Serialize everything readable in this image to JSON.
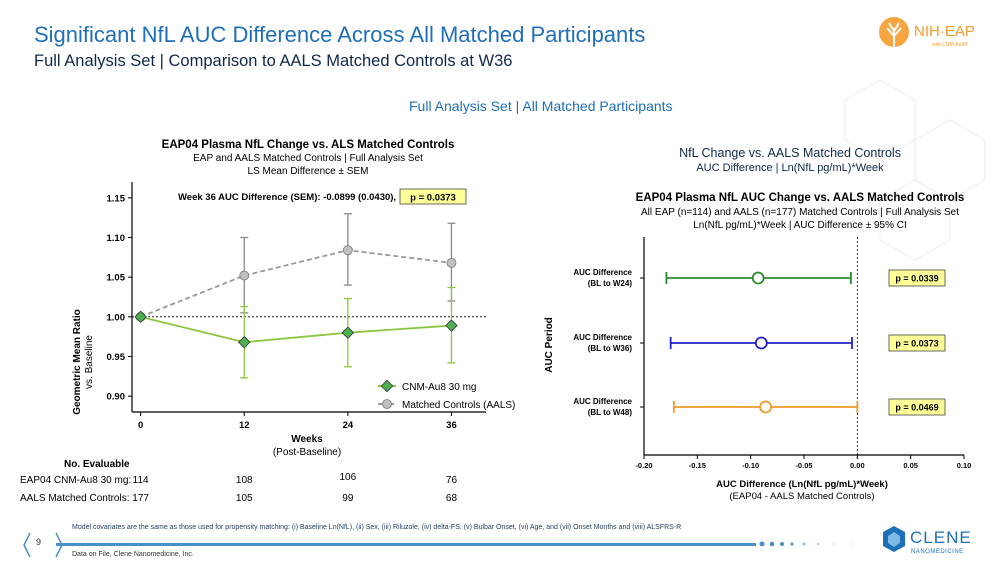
{
  "header": {
    "title": "Significant NfL AUC Difference Across All Matched Participants",
    "subtitle": "Full Analysis Set | Comparison to AALS Matched Controls at W36",
    "section_label": "Full Analysis Set | All Matched Participants"
  },
  "logos": {
    "nih_text": "NIH·EAP",
    "nih_sub": "with CNM-Au8®",
    "clene_text": "CLENE",
    "clene_sub": "NANOMEDICINE"
  },
  "colors": {
    "title_blue": "#1f6fb8",
    "green": "#8cc63f",
    "grey": "#9a9a9a",
    "pval_bg": "#ffff99",
    "forest_green": "#2e8b2e",
    "forest_blue": "#2222cc",
    "forest_orange": "#f39a2c"
  },
  "chart_data": [
    {
      "type": "line",
      "title": "EAP04 Plasma NfL Change vs. ALS Matched Controls",
      "subtitle1": "EAP and AALS Matched Controls | Full Analysis Set",
      "subtitle2": "LS Mean Difference ± SEM",
      "annotation": "Week 36 AUC Difference (SEM):  -0.0899 (0.0430),",
      "pvalue": "p = 0.0373",
      "xlabel": "Weeks",
      "xlabel2": "(Post-Baseline)",
      "ylabel": "Geometric Mean Ratio",
      "ylabel2": "vs. Baseline",
      "x": [
        0,
        12,
        24,
        36
      ],
      "xlim": [
        -1,
        40
      ],
      "ylim": [
        0.88,
        1.17
      ],
      "yticks": [
        "0.90",
        "0.95",
        "1.00",
        "1.05",
        "1.10",
        "1.15"
      ],
      "xticks": [
        "0",
        "12",
        "24",
        "36"
      ],
      "reference_line": 1.0,
      "series": [
        {
          "name": "CNM-Au8 30 mg",
          "values": [
            1.0,
            0.968,
            0.98,
            0.989
          ],
          "err_low": [
            1.0,
            0.923,
            0.937,
            0.942
          ],
          "err_high": [
            1.0,
            1.013,
            1.023,
            1.037
          ]
        },
        {
          "name": "Matched Controls (AALS)",
          "values": [
            1.0,
            1.052,
            1.084,
            1.068
          ],
          "err_low": [
            1.0,
            1.005,
            1.04,
            1.02
          ],
          "err_high": [
            1.0,
            1.1,
            1.13,
            1.118
          ]
        }
      ],
      "evaluable": {
        "header": "No. Evaluable",
        "rows": [
          {
            "label": "EAP04 CNM-Au8 30 mg:",
            "values": [
              "114",
              "108",
              "106",
              "76"
            ]
          },
          {
            "label": "AALS Matched Controls:",
            "values": [
              "177",
              "105",
              "99",
              "68"
            ]
          }
        ]
      }
    },
    {
      "type": "forest",
      "heading1": "NfL Change vs. AALS Matched Controls",
      "heading2": "AUC Difference | Ln(NfL pg/mL)*Week",
      "title": "EAP04 Plasma NfL AUC Change vs. AALS Matched Controls",
      "subtitle1": "All EAP (n=114) and AALS (n=177) Matched Controls | Full Analysis Set",
      "subtitle2": "Ln(NfL pg/mL)*Week | AUC Difference ± 95% CI",
      "ylabel": "AUC Period",
      "xlabel": "AUC Difference (Ln(NfL pg/mL)*Week)",
      "xlabel2": "(EAP04 - AALS Matched Controls)",
      "xlim": [
        -0.2,
        0.1
      ],
      "xticks": [
        "-0.20",
        "-0.15",
        "-0.10",
        "-0.05",
        "0.00",
        "0.05",
        "0.10"
      ],
      "rows": [
        {
          "label1": "AUC Difference",
          "label2": "(BL to W24)",
          "estimate": -0.093,
          "ci_low": -0.179,
          "ci_high": -0.006,
          "pvalue": "p = 0.0339"
        },
        {
          "label1": "AUC Difference",
          "label2": "(BL to W36)",
          "estimate": -0.09,
          "ci_low": -0.175,
          "ci_high": -0.005,
          "pvalue": "p = 0.0373"
        },
        {
          "label1": "AUC Difference",
          "label2": "(BL to W48)",
          "estimate": -0.086,
          "ci_low": -0.172,
          "ci_high": 0.0,
          "pvalue": "p = 0.0469"
        }
      ]
    }
  ],
  "footer": {
    "page_number": "9",
    "footnote": "Model covariates are the same as those used for propensity matching: (i) Baseline Ln(NfL), (ii) Sex, (iii) Riluzole, (iv) delta-FS, (v) Bulbar Onset, (vi) Age, and (vii) Onset Months and (viii) ALSFRS-R",
    "source": "Data on File, Clene Nanomedicine, Inc."
  }
}
